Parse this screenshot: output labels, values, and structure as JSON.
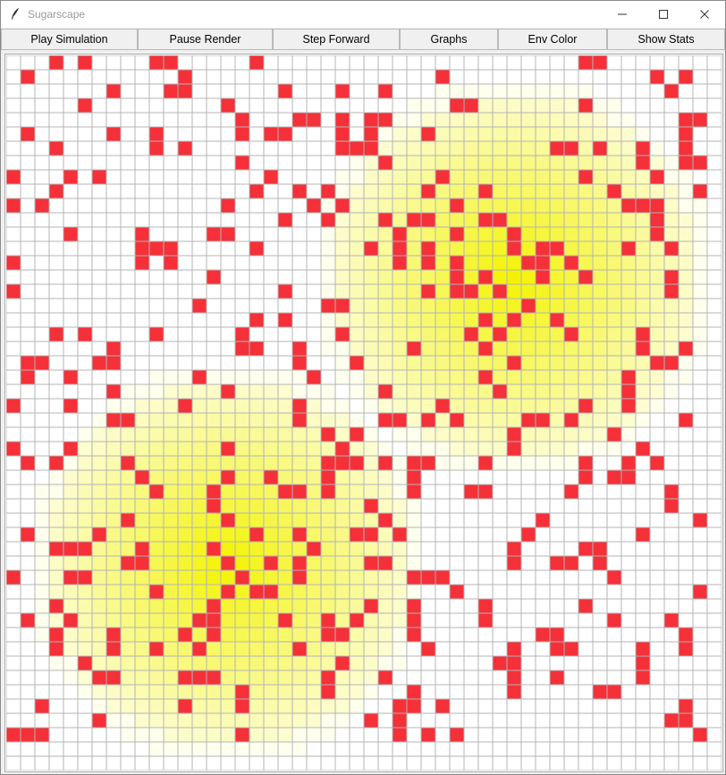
{
  "window": {
    "title": "Sugarscape",
    "controls": [
      "minimize-icon",
      "maximize-icon",
      "close-icon"
    ]
  },
  "toolbar": {
    "play_label": "Play Simulation",
    "pause_label": "Pause Render",
    "step_label": "Step Forward",
    "graphs_label": "Graphs",
    "env_color_label": "Env Color",
    "stats_label": "Show Stats"
  },
  "grid": {
    "rows": 50,
    "cols": 50,
    "colors": {
      "agent": "#f53038",
      "grid_line": "#b4b4b4",
      "sugar_max": "#f3f300",
      "empty": "#ffffff"
    },
    "sugar_peaks": [
      [
        35,
        15
      ],
      [
        15,
        35
      ]
    ],
    "agents": [
      [
        0,
        3
      ],
      [
        0,
        5
      ],
      [
        0,
        10
      ],
      [
        0,
        11
      ],
      [
        0,
        17
      ],
      [
        0,
        40
      ],
      [
        0,
        41
      ],
      [
        1,
        1
      ],
      [
        1,
        12
      ],
      [
        1,
        30
      ],
      [
        1,
        45
      ],
      [
        1,
        47
      ],
      [
        2,
        7
      ],
      [
        2,
        11
      ],
      [
        2,
        12
      ],
      [
        2,
        19
      ],
      [
        2,
        23
      ],
      [
        2,
        26
      ],
      [
        2,
        46
      ],
      [
        3,
        5
      ],
      [
        3,
        15
      ],
      [
        3,
        31
      ],
      [
        3,
        32
      ],
      [
        3,
        40
      ],
      [
        4,
        16
      ],
      [
        4,
        20
      ],
      [
        4,
        21
      ],
      [
        4,
        23
      ],
      [
        4,
        25
      ],
      [
        4,
        26
      ],
      [
        4,
        47
      ],
      [
        4,
        48
      ],
      [
        5,
        1
      ],
      [
        5,
        7
      ],
      [
        5,
        10
      ],
      [
        5,
        16
      ],
      [
        5,
        18
      ],
      [
        5,
        19
      ],
      [
        5,
        23
      ],
      [
        5,
        25
      ],
      [
        5,
        29
      ],
      [
        5,
        47
      ],
      [
        6,
        3
      ],
      [
        6,
        10
      ],
      [
        6,
        12
      ],
      [
        6,
        23
      ],
      [
        6,
        24
      ],
      [
        6,
        25
      ],
      [
        6,
        38
      ],
      [
        6,
        39
      ],
      [
        6,
        41
      ],
      [
        6,
        44
      ],
      [
        6,
        47
      ],
      [
        7,
        16
      ],
      [
        7,
        26
      ],
      [
        7,
        44
      ],
      [
        7,
        47
      ],
      [
        7,
        48
      ],
      [
        8,
        0
      ],
      [
        8,
        4
      ],
      [
        8,
        6
      ],
      [
        8,
        18
      ],
      [
        8,
        30
      ],
      [
        8,
        40
      ],
      [
        8,
        45
      ],
      [
        9,
        3
      ],
      [
        9,
        17
      ],
      [
        9,
        20
      ],
      [
        9,
        22
      ],
      [
        9,
        29
      ],
      [
        9,
        33
      ],
      [
        9,
        42
      ],
      [
        9,
        48
      ],
      [
        10,
        0
      ],
      [
        10,
        2
      ],
      [
        10,
        15
      ],
      [
        10,
        21
      ],
      [
        10,
        23
      ],
      [
        10,
        31
      ],
      [
        10,
        43
      ],
      [
        10,
        44
      ],
      [
        10,
        45
      ],
      [
        11,
        19
      ],
      [
        11,
        22
      ],
      [
        11,
        26
      ],
      [
        11,
        28
      ],
      [
        11,
        29
      ],
      [
        11,
        33
      ],
      [
        11,
        34
      ],
      [
        11,
        45
      ],
      [
        12,
        4
      ],
      [
        12,
        9
      ],
      [
        12,
        14
      ],
      [
        12,
        15
      ],
      [
        12,
        27
      ],
      [
        12,
        31
      ],
      [
        12,
        35
      ],
      [
        12,
        45
      ],
      [
        13,
        9
      ],
      [
        13,
        10
      ],
      [
        13,
        11
      ],
      [
        13,
        17
      ],
      [
        13,
        25
      ],
      [
        13,
        27
      ],
      [
        13,
        29
      ],
      [
        13,
        35
      ],
      [
        13,
        37
      ],
      [
        13,
        38
      ],
      [
        13,
        43
      ],
      [
        13,
        46
      ],
      [
        14,
        0
      ],
      [
        14,
        9
      ],
      [
        14,
        11
      ],
      [
        14,
        27
      ],
      [
        14,
        29
      ],
      [
        14,
        31
      ],
      [
        14,
        36
      ],
      [
        14,
        37
      ],
      [
        14,
        39
      ],
      [
        15,
        14
      ],
      [
        15,
        31
      ],
      [
        15,
        33
      ],
      [
        15,
        37
      ],
      [
        15,
        40
      ],
      [
        15,
        46
      ],
      [
        16,
        0
      ],
      [
        16,
        19
      ],
      [
        16,
        29
      ],
      [
        16,
        31
      ],
      [
        16,
        32
      ],
      [
        16,
        34
      ],
      [
        16,
        46
      ],
      [
        17,
        13
      ],
      [
        17,
        22
      ],
      [
        17,
        23
      ],
      [
        17,
        36
      ],
      [
        18,
        17
      ],
      [
        18,
        19
      ],
      [
        18,
        33
      ],
      [
        18,
        35
      ],
      [
        18,
        38
      ],
      [
        19,
        3
      ],
      [
        19,
        5
      ],
      [
        19,
        10
      ],
      [
        19,
        16
      ],
      [
        19,
        23
      ],
      [
        19,
        32
      ],
      [
        19,
        34
      ],
      [
        19,
        39
      ],
      [
        19,
        44
      ],
      [
        20,
        7
      ],
      [
        20,
        16
      ],
      [
        20,
        17
      ],
      [
        20,
        20
      ],
      [
        20,
        28
      ],
      [
        20,
        33
      ],
      [
        20,
        44
      ],
      [
        20,
        47
      ],
      [
        21,
        1
      ],
      [
        21,
        2
      ],
      [
        21,
        6
      ],
      [
        21,
        7
      ],
      [
        21,
        20
      ],
      [
        21,
        24
      ],
      [
        21,
        35
      ],
      [
        21,
        45
      ],
      [
        21,
        46
      ],
      [
        22,
        1
      ],
      [
        22,
        4
      ],
      [
        22,
        13
      ],
      [
        22,
        21
      ],
      [
        22,
        33
      ],
      [
        22,
        43
      ],
      [
        23,
        7
      ],
      [
        23,
        15
      ],
      [
        23,
        26
      ],
      [
        23,
        34
      ],
      [
        23,
        43
      ],
      [
        24,
        0
      ],
      [
        24,
        4
      ],
      [
        24,
        12
      ],
      [
        24,
        20
      ],
      [
        24,
        30
      ],
      [
        24,
        40
      ],
      [
        24,
        43
      ],
      [
        25,
        7
      ],
      [
        25,
        8
      ],
      [
        25,
        20
      ],
      [
        25,
        26
      ],
      [
        25,
        27
      ],
      [
        25,
        29
      ],
      [
        25,
        31
      ],
      [
        25,
        36
      ],
      [
        25,
        37
      ],
      [
        25,
        39
      ],
      [
        25,
        47
      ],
      [
        26,
        22
      ],
      [
        26,
        24
      ],
      [
        26,
        35
      ],
      [
        26,
        42
      ],
      [
        27,
        0
      ],
      [
        27,
        4
      ],
      [
        27,
        15
      ],
      [
        27,
        23
      ],
      [
        27,
        35
      ],
      [
        27,
        44
      ],
      [
        28,
        1
      ],
      [
        28,
        3
      ],
      [
        28,
        8
      ],
      [
        28,
        22
      ],
      [
        28,
        23
      ],
      [
        28,
        24
      ],
      [
        28,
        26
      ],
      [
        28,
        28
      ],
      [
        28,
        29
      ],
      [
        28,
        33
      ],
      [
        28,
        40
      ],
      [
        28,
        43
      ],
      [
        28,
        45
      ],
      [
        29,
        9
      ],
      [
        29,
        15
      ],
      [
        29,
        18
      ],
      [
        29,
        22
      ],
      [
        29,
        28
      ],
      [
        29,
        40
      ],
      [
        29,
        42
      ],
      [
        29,
        43
      ],
      [
        30,
        10
      ],
      [
        30,
        14
      ],
      [
        30,
        19
      ],
      [
        30,
        20
      ],
      [
        30,
        22
      ],
      [
        30,
        28
      ],
      [
        30,
        32
      ],
      [
        30,
        33
      ],
      [
        30,
        39
      ],
      [
        30,
        46
      ],
      [
        31,
        14
      ],
      [
        31,
        25
      ],
      [
        31,
        46
      ],
      [
        32,
        8
      ],
      [
        32,
        15
      ],
      [
        32,
        26
      ],
      [
        32,
        37
      ],
      [
        32,
        48
      ],
      [
        33,
        1
      ],
      [
        33,
        6
      ],
      [
        33,
        17
      ],
      [
        33,
        20
      ],
      [
        33,
        24
      ],
      [
        33,
        25
      ],
      [
        33,
        27
      ],
      [
        33,
        36
      ],
      [
        33,
        44
      ],
      [
        34,
        3
      ],
      [
        34,
        4
      ],
      [
        34,
        5
      ],
      [
        34,
        9
      ],
      [
        34,
        14
      ],
      [
        34,
        21
      ],
      [
        34,
        35
      ],
      [
        34,
        40
      ],
      [
        34,
        41
      ],
      [
        35,
        8
      ],
      [
        35,
        9
      ],
      [
        35,
        15
      ],
      [
        35,
        18
      ],
      [
        35,
        20
      ],
      [
        35,
        25
      ],
      [
        35,
        26
      ],
      [
        35,
        35
      ],
      [
        35,
        38
      ],
      [
        35,
        39
      ],
      [
        35,
        41
      ],
      [
        36,
        0
      ],
      [
        36,
        4
      ],
      [
        36,
        5
      ],
      [
        36,
        16
      ],
      [
        36,
        20
      ],
      [
        36,
        28
      ],
      [
        36,
        29
      ],
      [
        36,
        30
      ],
      [
        36,
        42
      ],
      [
        37,
        10
      ],
      [
        37,
        15
      ],
      [
        37,
        17
      ],
      [
        37,
        18
      ],
      [
        37,
        31
      ],
      [
        37,
        48
      ],
      [
        38,
        3
      ],
      [
        38,
        14
      ],
      [
        38,
        25
      ],
      [
        38,
        28
      ],
      [
        38,
        33
      ],
      [
        38,
        40
      ],
      [
        39,
        1
      ],
      [
        39,
        4
      ],
      [
        39,
        13
      ],
      [
        39,
        14
      ],
      [
        39,
        19
      ],
      [
        39,
        22
      ],
      [
        39,
        24
      ],
      [
        39,
        28
      ],
      [
        39,
        33
      ],
      [
        39,
        42
      ],
      [
        39,
        46
      ],
      [
        40,
        3
      ],
      [
        40,
        7
      ],
      [
        40,
        12
      ],
      [
        40,
        14
      ],
      [
        40,
        22
      ],
      [
        40,
        23
      ],
      [
        40,
        28
      ],
      [
        40,
        37
      ],
      [
        40,
        38
      ],
      [
        40,
        47
      ],
      [
        41,
        3
      ],
      [
        41,
        7
      ],
      [
        41,
        10
      ],
      [
        41,
        13
      ],
      [
        41,
        20
      ],
      [
        41,
        29
      ],
      [
        41,
        35
      ],
      [
        41,
        38
      ],
      [
        41,
        39
      ],
      [
        41,
        44
      ],
      [
        41,
        47
      ],
      [
        42,
        5
      ],
      [
        42,
        23
      ],
      [
        42,
        34
      ],
      [
        42,
        35
      ],
      [
        42,
        44
      ],
      [
        43,
        6
      ],
      [
        43,
        7
      ],
      [
        43,
        12
      ],
      [
        43,
        13
      ],
      [
        43,
        14
      ],
      [
        43,
        22
      ],
      [
        43,
        26
      ],
      [
        43,
        35
      ],
      [
        43,
        38
      ],
      [
        43,
        44
      ],
      [
        44,
        16
      ],
      [
        44,
        22
      ],
      [
        44,
        28
      ],
      [
        44,
        35
      ],
      [
        44,
        41
      ],
      [
        44,
        42
      ],
      [
        45,
        2
      ],
      [
        45,
        12
      ],
      [
        45,
        16
      ],
      [
        45,
        27
      ],
      [
        45,
        28
      ],
      [
        45,
        30
      ],
      [
        45,
        47
      ],
      [
        46,
        6
      ],
      [
        46,
        25
      ],
      [
        46,
        27
      ],
      [
        46,
        46
      ],
      [
        46,
        47
      ],
      [
        47,
        0
      ],
      [
        47,
        1
      ],
      [
        47,
        2
      ],
      [
        47,
        16
      ],
      [
        47,
        27
      ],
      [
        47,
        29
      ],
      [
        47,
        31
      ],
      [
        47,
        48
      ]
    ]
  }
}
